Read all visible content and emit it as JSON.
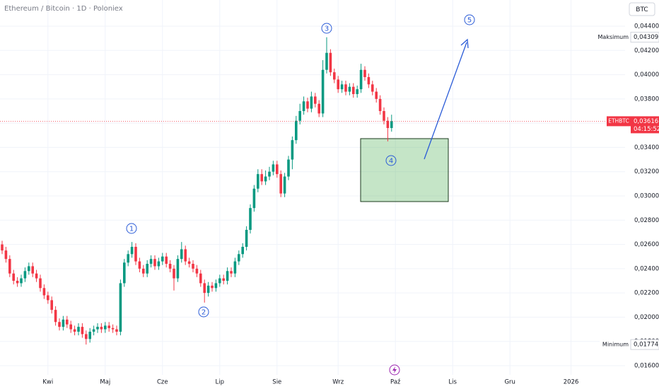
{
  "chart_data": {
    "type": "candlestick",
    "title": "Ethereum / Bitcoin · 1D · Poloniex",
    "currency": "BTC",
    "up_color": "#089981",
    "down_color": "#f23645",
    "grid": true,
    "ylim": [
      0.01524,
      0.04616
    ],
    "yticks": [
      {
        "value": 0.016,
        "label": "0,01600"
      },
      {
        "value": 0.018,
        "label": "0,01800"
      },
      {
        "value": 0.02,
        "label": "0,02000"
      },
      {
        "value": 0.022,
        "label": "0,02200"
      },
      {
        "value": 0.024,
        "label": "0,02400"
      },
      {
        "value": 0.026,
        "label": "0,02600"
      },
      {
        "value": 0.028,
        "label": "0,02800"
      },
      {
        "value": 0.03,
        "label": "0,03000"
      },
      {
        "value": 0.032,
        "label": "0,03200"
      },
      {
        "value": 0.034,
        "label": "0,03400"
      },
      {
        "value": 0.036,
        "label": "0,03600"
      },
      {
        "value": 0.038,
        "label": "0,03800"
      },
      {
        "value": 0.04,
        "label": "0,04000"
      },
      {
        "value": 0.042,
        "label": "0,04200"
      },
      {
        "value": 0.044,
        "label": "0,04400"
      }
    ],
    "categories": [
      null,
      null,
      null,
      null,
      null,
      null,
      null,
      null,
      null,
      null,
      null,
      null,
      "Kwi",
      null,
      null,
      null,
      null,
      null,
      null,
      null,
      null,
      null,
      null,
      null,
      null,
      null,
      null,
      "Maj",
      null,
      null,
      null,
      null,
      null,
      null,
      null,
      null,
      null,
      null,
      null,
      null,
      null,
      null,
      "Cze",
      null,
      null,
      null,
      null,
      null,
      null,
      null,
      null,
      null,
      null,
      null,
      null,
      null,
      null,
      "Lip",
      null,
      null,
      null,
      null,
      null,
      null,
      null,
      null,
      null,
      null,
      null,
      null,
      null,
      null,
      "Sie",
      null,
      null,
      null,
      null,
      null,
      null,
      null,
      null,
      null,
      null,
      null,
      null,
      null,
      null,
      null,
      "Wrz",
      null,
      null,
      null,
      null,
      null,
      null,
      null,
      null,
      null,
      null,
      null,
      null,
      null,
      null,
      "Paź",
      null,
      null,
      null,
      null,
      null,
      null,
      null,
      null,
      null,
      null,
      null,
      null,
      null,
      null,
      "Lis",
      null,
      null,
      null,
      null,
      null,
      null,
      null,
      null,
      null,
      null,
      null,
      null,
      null,
      null,
      "Gru",
      null,
      null,
      null,
      null,
      null,
      null,
      null,
      null,
      null,
      null,
      null,
      null,
      null,
      null,
      null,
      "2026",
      null,
      null,
      null,
      null,
      null,
      null,
      null
    ],
    "open": [
      0.026,
      0.0255,
      0.0248,
      0.0236,
      0.023,
      0.0228,
      0.0232,
      0.0238,
      0.0242,
      0.0236,
      0.0232,
      0.0224,
      0.0218,
      0.0214,
      0.0206,
      0.0196,
      0.0192,
      0.0198,
      0.0194,
      0.019,
      0.0188,
      0.0192,
      0.0186,
      0.0182,
      0.0188,
      0.019,
      0.0192,
      0.019,
      0.0193,
      0.0191,
      0.019,
      0.0188,
      0.0228,
      0.0245,
      0.0252,
      0.0258,
      0.0246,
      0.024,
      0.0236,
      0.0244,
      0.0248,
      0.0242,
      0.0246,
      0.025,
      0.0244,
      0.024,
      0.0232,
      0.0248,
      0.0256,
      0.0246,
      0.0244,
      0.024,
      0.0236,
      0.0228,
      0.022,
      0.0226,
      0.0224,
      0.0228,
      0.0232,
      0.023,
      0.0238,
      0.0236,
      0.0246,
      0.0252,
      0.0258,
      0.0272,
      0.029,
      0.0306,
      0.0318,
      0.0312,
      0.0316,
      0.032,
      0.0326,
      0.0318,
      0.0302,
      0.0316,
      0.033,
      0.0346,
      0.0362,
      0.037,
      0.0378,
      0.0372,
      0.0382,
      0.0376,
      0.0368,
      0.0404,
      0.0418,
      0.0402,
      0.0396,
      0.0388,
      0.0392,
      0.0386,
      0.039,
      0.0384,
      0.0388,
      0.0404,
      0.0398,
      0.0392,
      0.0386,
      0.038,
      0.037,
      0.0362,
      0.0356,
      null,
      null,
      null,
      null,
      null,
      null,
      null,
      null,
      null,
      null,
      null,
      null,
      null,
      null,
      null,
      null,
      null,
      null,
      null,
      null,
      null,
      null,
      null,
      null,
      null,
      null,
      null,
      null,
      null,
      null,
      null,
      null,
      null,
      null,
      null,
      null,
      null,
      null,
      null,
      null,
      null,
      null,
      null,
      null,
      null,
      null,
      null,
      null,
      null,
      null,
      null,
      null,
      null,
      null
    ],
    "high": [
      0.0263,
      0.0258,
      0.0251,
      0.0239,
      0.0233,
      0.0235,
      0.0241,
      0.0245,
      0.0245,
      0.0239,
      0.0235,
      0.0227,
      0.0221,
      0.0217,
      0.0209,
      0.0199,
      0.0201,
      0.0201,
      0.0197,
      0.0193,
      0.0195,
      0.0195,
      0.0189,
      0.0191,
      0.0193,
      0.0195,
      0.0195,
      0.0196,
      0.0196,
      0.0194,
      0.0193,
      0.0231,
      0.0248,
      0.0255,
      0.0262,
      0.0261,
      0.0249,
      0.0243,
      0.0247,
      0.0251,
      0.0251,
      0.0249,
      0.0253,
      0.0253,
      0.0247,
      0.0243,
      0.0251,
      0.0262,
      0.0259,
      0.0249,
      0.0247,
      0.0243,
      0.0239,
      0.0231,
      0.0229,
      0.0229,
      0.0231,
      0.0235,
      0.0235,
      0.0241,
      0.0241,
      0.0249,
      0.0255,
      0.0261,
      0.0275,
      0.0293,
      0.0309,
      0.0322,
      0.0322,
      0.0321,
      0.0324,
      0.0329,
      0.0329,
      0.0321,
      0.0319,
      0.0333,
      0.0349,
      0.0366,
      0.0376,
      0.0382,
      0.0381,
      0.0386,
      0.0385,
      0.0379,
      0.0412,
      0.04309,
      0.0421,
      0.0405,
      0.0399,
      0.0395,
      0.0395,
      0.0393,
      0.0393,
      0.0391,
      0.0409,
      0.0407,
      0.0401,
      0.0395,
      0.0389,
      0.0383,
      0.0373,
      0.0365,
      0.0367,
      null,
      null,
      null,
      null,
      null,
      null,
      null,
      null,
      null,
      null,
      null,
      null,
      null,
      null,
      null,
      null,
      null,
      null,
      null,
      null,
      null,
      null,
      null,
      null,
      null,
      null,
      null,
      null,
      null,
      null,
      null,
      null,
      null,
      null,
      null,
      null,
      null,
      null,
      null,
      null,
      null,
      null,
      null,
      null,
      null,
      null,
      null,
      null,
      null,
      null,
      null,
      null,
      null,
      null
    ],
    "low": [
      0.0252,
      0.0245,
      0.0233,
      0.0227,
      0.0225,
      0.0225,
      0.0229,
      0.0235,
      0.0233,
      0.0229,
      0.0221,
      0.0215,
      0.0211,
      0.0203,
      0.0193,
      0.0189,
      0.0189,
      0.0191,
      0.0187,
      0.0185,
      0.0185,
      0.0183,
      0.01774,
      0.0179,
      0.0185,
      0.0187,
      0.0187,
      0.0187,
      0.0188,
      0.0187,
      0.0185,
      0.0185,
      0.0225,
      0.0242,
      0.0249,
      0.0243,
      0.0237,
      0.0233,
      0.0233,
      0.0241,
      0.0239,
      0.0239,
      0.0243,
      0.0241,
      0.0237,
      0.0222,
      0.0229,
      0.0245,
      0.0243,
      0.0241,
      0.0237,
      0.0233,
      0.0225,
      0.0212,
      0.0217,
      0.0221,
      0.0221,
      0.0225,
      0.0227,
      0.0227,
      0.0233,
      0.0233,
      0.0243,
      0.0249,
      0.0255,
      0.0269,
      0.0287,
      0.0303,
      0.0309,
      0.0309,
      0.0313,
      0.0317,
      0.0315,
      0.0299,
      0.0299,
      0.0313,
      0.0322,
      0.0343,
      0.0359,
      0.0367,
      0.0369,
      0.0369,
      0.0373,
      0.0365,
      0.0365,
      0.0401,
      0.0399,
      0.0393,
      0.0385,
      0.0385,
      0.0383,
      0.0383,
      0.0381,
      0.0381,
      0.0385,
      0.0395,
      0.0389,
      0.0383,
      0.0377,
      0.0367,
      0.0359,
      0.0345,
      0.0353,
      null,
      null,
      null,
      null,
      null,
      null,
      null,
      null,
      null,
      null,
      null,
      null,
      null,
      null,
      null,
      null,
      null,
      null,
      null,
      null,
      null,
      null,
      null,
      null,
      null,
      null,
      null,
      null,
      null,
      null,
      null,
      null,
      null,
      null,
      null,
      null,
      null,
      null,
      null,
      null,
      null,
      null,
      null,
      null,
      null,
      null,
      null,
      null,
      null,
      null,
      null,
      null,
      null,
      null
    ],
    "close": [
      0.0255,
      0.0248,
      0.0236,
      0.023,
      0.0228,
      0.0232,
      0.0238,
      0.0242,
      0.0236,
      0.0232,
      0.0224,
      0.0218,
      0.0214,
      0.0206,
      0.0196,
      0.0192,
      0.0198,
      0.0194,
      0.019,
      0.0188,
      0.0192,
      0.0186,
      0.0182,
      0.0188,
      0.019,
      0.0192,
      0.019,
      0.0193,
      0.0191,
      0.019,
      0.0188,
      0.0228,
      0.0245,
      0.0252,
      0.0258,
      0.0246,
      0.024,
      0.0236,
      0.0244,
      0.0248,
      0.0242,
      0.0246,
      0.025,
      0.0244,
      0.024,
      0.0232,
      0.0248,
      0.0256,
      0.0246,
      0.0244,
      0.024,
      0.0236,
      0.0228,
      0.022,
      0.0226,
      0.0224,
      0.0228,
      0.0232,
      0.023,
      0.0238,
      0.0236,
      0.0246,
      0.0252,
      0.0258,
      0.0272,
      0.029,
      0.0306,
      0.0318,
      0.0312,
      0.0316,
      0.032,
      0.0326,
      0.0318,
      0.0302,
      0.0316,
      0.033,
      0.0346,
      0.0362,
      0.037,
      0.0378,
      0.0372,
      0.0382,
      0.0376,
      0.0368,
      0.0404,
      0.0418,
      0.0402,
      0.0396,
      0.0388,
      0.0392,
      0.0386,
      0.039,
      0.0384,
      0.0388,
      0.0404,
      0.0398,
      0.0392,
      0.0386,
      0.038,
      0.037,
      0.0362,
      0.0356,
      0.03616,
      null,
      null,
      null,
      null,
      null,
      null,
      null,
      null,
      null,
      null,
      null,
      null,
      null,
      null,
      null,
      null,
      null,
      null,
      null,
      null,
      null,
      null,
      null,
      null,
      null,
      null,
      null,
      null,
      null,
      null,
      null,
      null,
      null,
      null,
      null,
      null,
      null,
      null,
      null,
      null,
      null,
      null,
      null,
      null,
      null,
      null,
      null,
      null,
      null,
      null,
      null,
      null,
      null,
      null
    ],
    "max_marker": {
      "label": "Maksimum",
      "value": 0.04309,
      "value_label": "0,04309"
    },
    "min_marker": {
      "label": "Minimum",
      "value": 0.01774,
      "value_label": "0,01774"
    },
    "last_price": {
      "symbol": "ETHBTC",
      "value": 0.03616,
      "value_label": "0,03616",
      "countdown": "04:15:52"
    },
    "wave_labels": [
      "1",
      "2",
      "3",
      "4",
      "5"
    ]
  }
}
